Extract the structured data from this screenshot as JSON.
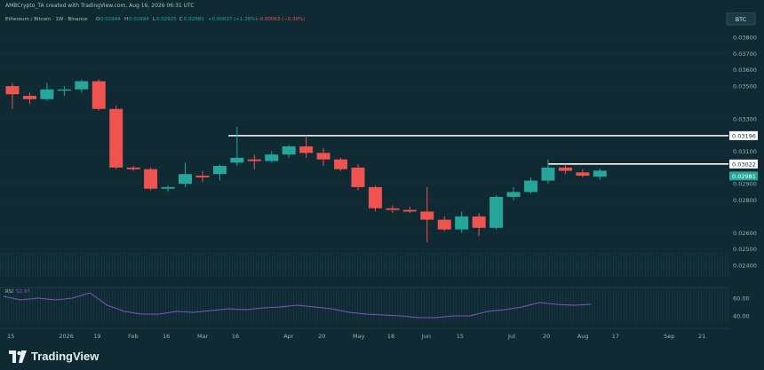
{
  "header": {
    "title": "AMBCrypto_TA created with TradingView.com, Aug 16, 2026 06:31 UTC"
  },
  "legend": {
    "symbol": "Ethereum / Bitcoin · 1W · Binance",
    "open_label": "O",
    "open": "0.02944",
    "high_label": "H",
    "high": "0.02994",
    "low_label": "L",
    "low": "0.02925",
    "close_label": "C",
    "close": "0.02981",
    "change": "+0.00037 (+1.26%)",
    "prev_change": "−0.00063 (−0.30%)"
  },
  "currency_badge": "BTC",
  "footer": {
    "brand": "TradingView"
  },
  "colors": {
    "background": "#0f2a33",
    "up": "#26a69a",
    "down": "#ef5350",
    "line": "#ffffff",
    "rsi": "#7e57c2"
  },
  "chart_data": {
    "type": "candlestick",
    "price_axis": [
      "0.03800",
      "0.03700",
      "0.03600",
      "0.03500",
      "0.03300",
      "0.03100",
      "0.02900",
      "0.02800",
      "0.02600",
      "0.02500",
      "0.02400"
    ],
    "price_axis_values": [
      0.038,
      0.037,
      0.036,
      0.035,
      0.033,
      0.031,
      0.029,
      0.028,
      0.026,
      0.025,
      0.024
    ],
    "x_ticks": [
      "15",
      "2026",
      "19",
      "Feb",
      "16",
      "Mar",
      "16",
      "Apr",
      "20",
      "May",
      "18",
      "Jun",
      "15",
      "Jul",
      "20",
      "Aug",
      "17",
      "Sep",
      "21"
    ],
    "x_tick_weeks": [
      0,
      3,
      5,
      7,
      9,
      11,
      13,
      16,
      18,
      20,
      22,
      24,
      26,
      29,
      31,
      33,
      35,
      38,
      40
    ],
    "candles": [
      {
        "w": 0,
        "o": 0.035,
        "h": 0.0352,
        "l": 0.0336,
        "c": 0.0345
      },
      {
        "w": 1,
        "o": 0.0344,
        "h": 0.0346,
        "l": 0.0339,
        "c": 0.0342
      },
      {
        "w": 2,
        "o": 0.0342,
        "h": 0.0352,
        "l": 0.0341,
        "c": 0.0348
      },
      {
        "w": 3,
        "o": 0.0348,
        "h": 0.035,
        "l": 0.0344,
        "c": 0.0348
      },
      {
        "w": 4,
        "o": 0.0348,
        "h": 0.0354,
        "l": 0.0346,
        "c": 0.0353
      },
      {
        "w": 5,
        "o": 0.0353,
        "h": 0.0354,
        "l": 0.0335,
        "c": 0.0336
      },
      {
        "w": 6,
        "o": 0.0336,
        "h": 0.0338,
        "l": 0.0299,
        "c": 0.03
      },
      {
        "w": 7,
        "o": 0.03,
        "h": 0.0301,
        "l": 0.0298,
        "c": 0.0299
      },
      {
        "w": 8,
        "o": 0.0299,
        "h": 0.03,
        "l": 0.0286,
        "c": 0.0287
      },
      {
        "w": 9,
        "o": 0.0287,
        "h": 0.0289,
        "l": 0.0285,
        "c": 0.0288
      },
      {
        "w": 10,
        "o": 0.029,
        "h": 0.0303,
        "l": 0.0288,
        "c": 0.0296
      },
      {
        "w": 11,
        "o": 0.0295,
        "h": 0.0298,
        "l": 0.0291,
        "c": 0.0294
      },
      {
        "w": 12,
        "o": 0.0296,
        "h": 0.0302,
        "l": 0.0292,
        "c": 0.0301
      },
      {
        "w": 13,
        "o": 0.0303,
        "h": 0.0325,
        "l": 0.0301,
        "c": 0.0306
      },
      {
        "w": 14,
        "o": 0.0305,
        "h": 0.0308,
        "l": 0.0299,
        "c": 0.0304
      },
      {
        "w": 15,
        "o": 0.0304,
        "h": 0.031,
        "l": 0.0303,
        "c": 0.0308
      },
      {
        "w": 16,
        "o": 0.0308,
        "h": 0.0314,
        "l": 0.0306,
        "c": 0.0313
      },
      {
        "w": 17,
        "o": 0.0313,
        "h": 0.03196,
        "l": 0.0306,
        "c": 0.0309
      },
      {
        "w": 18,
        "o": 0.0309,
        "h": 0.0312,
        "l": 0.0301,
        "c": 0.0305
      },
      {
        "w": 19,
        "o": 0.0305,
        "h": 0.0306,
        "l": 0.0298,
        "c": 0.0299
      },
      {
        "w": 20,
        "o": 0.03,
        "h": 0.0302,
        "l": 0.0286,
        "c": 0.0288
      },
      {
        "w": 21,
        "o": 0.0288,
        "h": 0.0289,
        "l": 0.0273,
        "c": 0.0275
      },
      {
        "w": 22,
        "o": 0.0275,
        "h": 0.0277,
        "l": 0.0272,
        "c": 0.0274
      },
      {
        "w": 23,
        "o": 0.0274,
        "h": 0.0276,
        "l": 0.0272,
        "c": 0.0273
      },
      {
        "w": 24,
        "o": 0.0273,
        "h": 0.0288,
        "l": 0.0254,
        "c": 0.0268
      },
      {
        "w": 25,
        "o": 0.0268,
        "h": 0.027,
        "l": 0.0261,
        "c": 0.0262
      },
      {
        "w": 26,
        "o": 0.0262,
        "h": 0.0273,
        "l": 0.026,
        "c": 0.027
      },
      {
        "w": 27,
        "o": 0.027,
        "h": 0.0272,
        "l": 0.0258,
        "c": 0.0263
      },
      {
        "w": 28,
        "o": 0.0263,
        "h": 0.0283,
        "l": 0.0262,
        "c": 0.0282
      },
      {
        "w": 29,
        "o": 0.0282,
        "h": 0.0288,
        "l": 0.028,
        "c": 0.0285
      },
      {
        "w": 30,
        "o": 0.0285,
        "h": 0.0294,
        "l": 0.0284,
        "c": 0.0292
      },
      {
        "w": 31,
        "o": 0.0292,
        "h": 0.0305,
        "l": 0.029,
        "c": 0.03
      },
      {
        "w": 32,
        "o": 0.03,
        "h": 0.03022,
        "l": 0.0296,
        "c": 0.0298
      },
      {
        "w": 33,
        "o": 0.0297,
        "h": 0.0299,
        "l": 0.0294,
        "c": 0.0295
      },
      {
        "w": 34,
        "o": 0.02944,
        "h": 0.02994,
        "l": 0.02925,
        "c": 0.02981
      }
    ],
    "horizontal_levels": [
      {
        "value": "0.03196",
        "start_week": 12.5
      },
      {
        "value": "0.03022",
        "start_week": 31
      }
    ],
    "last_price_tag": "0.02981",
    "rsi": {
      "label": "RSI",
      "value": "52.97",
      "axis": [
        "60.00",
        "40.00"
      ],
      "axis_values": [
        60,
        40
      ],
      "values": [
        62,
        58,
        60,
        58,
        60,
        66,
        52,
        45,
        42,
        42,
        45,
        44,
        46,
        48,
        47,
        49,
        50,
        52,
        50,
        48,
        44,
        42,
        41,
        40,
        38,
        38,
        40,
        40,
        45,
        47,
        50,
        55,
        53,
        52,
        53
      ]
    }
  }
}
